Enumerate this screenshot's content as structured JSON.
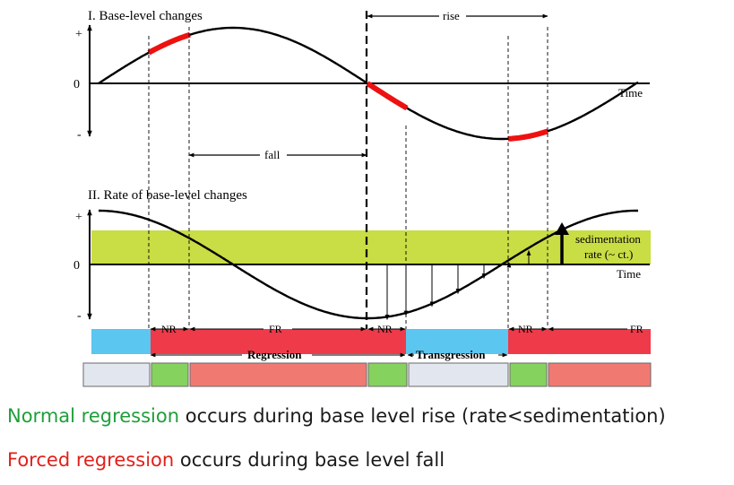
{
  "panel1": {
    "title": "I. Base-level changes",
    "y_plus": "+",
    "y_zero": "0",
    "y_minus": "-",
    "x_label": "Time",
    "rise_label": "rise",
    "fall_label": "fall"
  },
  "panel2": {
    "title": "II. Rate of base-level changes",
    "y_plus": "+",
    "y_zero": "0",
    "y_minus": "-",
    "x_label": "Time",
    "sed_label_1": "sedimentation",
    "sed_label_2": "rate (~ ct.)"
  },
  "stages": {
    "nr_1": "NR",
    "fr_1": "FR",
    "nr_2": "NR",
    "nr_3": "NR",
    "fr_2": "FR",
    "regression": "Regression",
    "transgression": "Transgression"
  },
  "captions": {
    "line1_highlight": "Normal regression",
    "line1_rest": " occurs during base level rise (rate<sedimentation)",
    "line2_highlight": "Forced regression",
    "line2_rest": " occurs during base level fall"
  },
  "colors": {
    "curve": "#000000",
    "highlight_red": "#ee1111",
    "sedimentation_band": "#c9dd44",
    "bar_blue": "#5bc6ef",
    "bar_red": "#ef3a4a",
    "box_grey": "#e2e7ef",
    "box_green": "#86d25e",
    "box_salmon": "#f07a72",
    "caption_green": "#1f9e3a",
    "caption_red": "#e0201b"
  }
}
